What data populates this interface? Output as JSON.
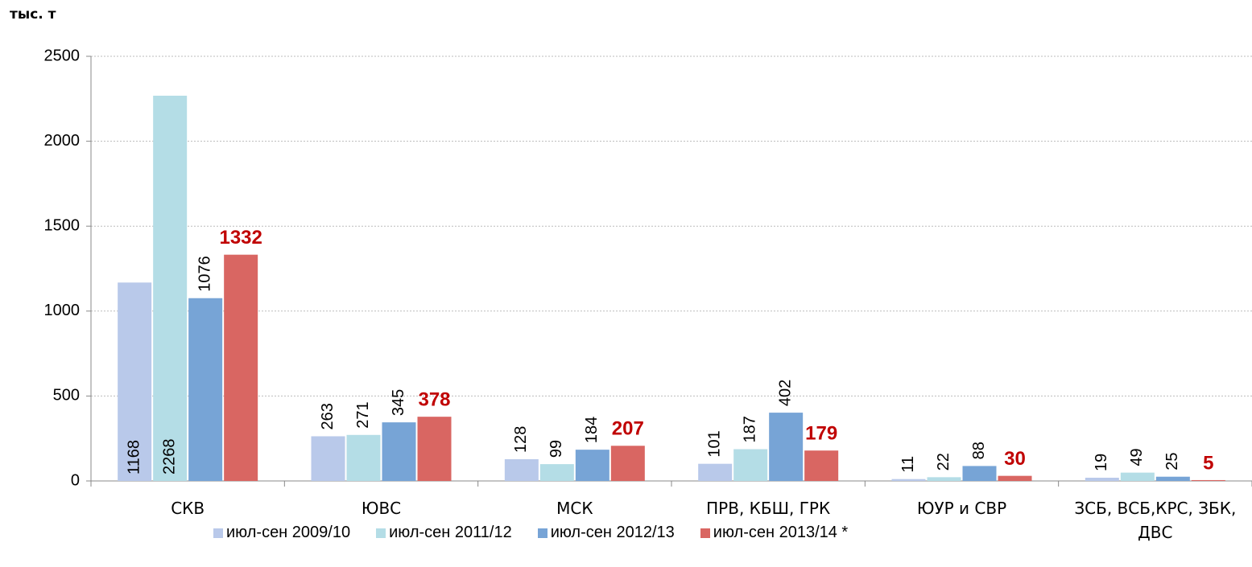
{
  "chart_data": {
    "type": "bar",
    "y_label": "тыс. т",
    "categories": [
      "СКВ",
      "ЮВС",
      "МСК",
      "ПРВ, КБШ, ГРК",
      "ЮУР и СВР",
      "ЗСБ, ВСБ,КРС, ЗБК, ДВС"
    ],
    "series": [
      {
        "name": "июл-сен 2009/10",
        "color": "#b9c9ea",
        "values": [
          1168,
          263,
          128,
          101,
          11,
          19
        ]
      },
      {
        "name": "июл-сен 2011/12",
        "color": "#b4dde6",
        "values": [
          2268,
          271,
          99,
          187,
          22,
          49
        ]
      },
      {
        "name": "июл-сен 2012/13",
        "color": "#77a4d6",
        "values": [
          1076,
          345,
          184,
          402,
          88,
          25
        ]
      },
      {
        "name": "июл-сен 2013/14 *",
        "color": "#d96662",
        "values": [
          1332,
          378,
          207,
          179,
          30,
          5
        ]
      }
    ],
    "ylim": [
      0,
      2500
    ],
    "yticks": [
      0,
      500,
      1000,
      1500,
      2000,
      2500
    ],
    "grid": true,
    "legend": "bottom"
  }
}
